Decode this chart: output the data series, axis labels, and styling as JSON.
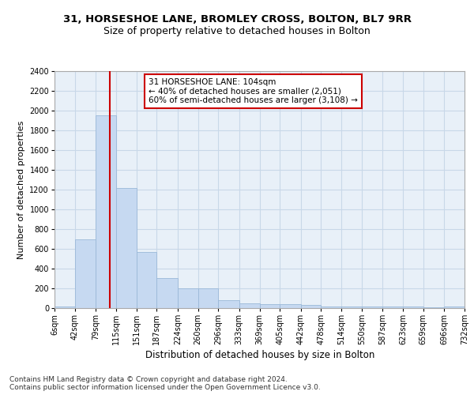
{
  "title1": "31, HORSESHOE LANE, BROMLEY CROSS, BOLTON, BL7 9RR",
  "title2": "Size of property relative to detached houses in Bolton",
  "xlabel": "Distribution of detached houses by size in Bolton",
  "ylabel": "Number of detached properties",
  "bar_color": "#c6d9f1",
  "bar_edge_color": "#9ab8d8",
  "grid_color": "#c8d8e8",
  "background_color": "#e8f0f8",
  "vline_x": 104,
  "vline_color": "#cc0000",
  "annotation_text": "31 HORSESHOE LANE: 104sqm\n← 40% of detached houses are smaller (2,051)\n60% of semi-detached houses are larger (3,108) →",
  "annotation_box_color": "#ffffff",
  "annotation_box_edge": "#cc0000",
  "bin_edges": [
    6,
    42,
    79,
    115,
    151,
    187,
    224,
    260,
    296,
    333,
    369,
    405,
    442,
    478,
    514,
    550,
    587,
    623,
    659,
    696,
    732
  ],
  "bin_heights": [
    20,
    700,
    1950,
    1220,
    570,
    305,
    200,
    200,
    80,
    45,
    38,
    38,
    30,
    20,
    20,
    20,
    20,
    15,
    10,
    20
  ],
  "tick_labels": [
    "6sqm",
    "42sqm",
    "79sqm",
    "115sqm",
    "151sqm",
    "187sqm",
    "224sqm",
    "260sqm",
    "296sqm",
    "333sqm",
    "369sqm",
    "405sqm",
    "442sqm",
    "478sqm",
    "514sqm",
    "550sqm",
    "587sqm",
    "623sqm",
    "659sqm",
    "696sqm",
    "732sqm"
  ],
  "ylim": [
    0,
    2400
  ],
  "yticks": [
    0,
    200,
    400,
    600,
    800,
    1000,
    1200,
    1400,
    1600,
    1800,
    2000,
    2200,
    2400
  ],
  "footer_text": "Contains HM Land Registry data © Crown copyright and database right 2024.\nContains public sector information licensed under the Open Government Licence v3.0.",
  "title1_fontsize": 9.5,
  "title2_fontsize": 9,
  "xlabel_fontsize": 8.5,
  "ylabel_fontsize": 8,
  "tick_fontsize": 7,
  "footer_fontsize": 6.5,
  "annotation_fontsize": 7.5
}
